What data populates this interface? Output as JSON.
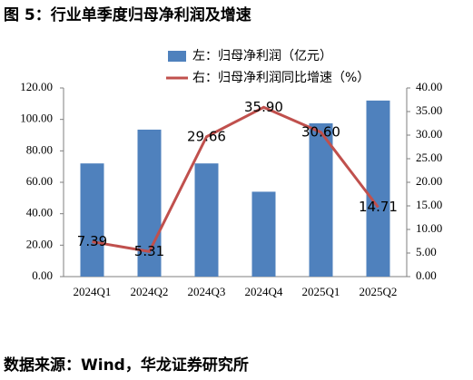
{
  "title": "图 5：行业单季度归母净利润及增速",
  "source": "数据来源：Wind，华龙证券研究所",
  "chart_data": {
    "type": "bar-line",
    "categories": [
      "2024Q1",
      "2024Q2",
      "2024Q3",
      "2024Q4",
      "2025Q1",
      "2025Q2"
    ],
    "series": [
      {
        "name": "左：归母净利润（亿元）",
        "type": "bar",
        "color": "#4f81bd",
        "values": [
          72,
          93.5,
          72,
          54,
          97.5,
          112
        ]
      },
      {
        "name": "右：归母净利润同比增速（%）",
        "type": "line",
        "axis": "y2",
        "color": "#c0504d",
        "values": [
          7.39,
          5.31,
          29.66,
          35.9,
          30.6,
          14.71
        ],
        "value_labels": [
          "7.39",
          "5.31",
          "29.66",
          "35.90",
          "30.60",
          "14.71"
        ]
      }
    ],
    "ylim": [
      0,
      120
    ],
    "yticks": [
      {
        "value": 0,
        "label": "0.00"
      },
      {
        "value": 20,
        "label": "20.00"
      },
      {
        "value": 40,
        "label": "40.00"
      },
      {
        "value": 60,
        "label": "60.00"
      },
      {
        "value": 80,
        "label": "80.00"
      },
      {
        "value": 100,
        "label": "100.00"
      },
      {
        "value": 120,
        "label": "120.00"
      }
    ],
    "y2lim": [
      0,
      40
    ],
    "y2ticks": [
      {
        "value": 0,
        "label": "0.00"
      },
      {
        "value": 5,
        "label": "5.00"
      },
      {
        "value": 10,
        "label": "10.00"
      },
      {
        "value": 15,
        "label": "15.00"
      },
      {
        "value": 20,
        "label": "20.00"
      },
      {
        "value": 25,
        "label": "25.00"
      },
      {
        "value": 30,
        "label": "30.00"
      },
      {
        "value": 35,
        "label": "35.00"
      },
      {
        "value": 40,
        "label": "40.00"
      }
    ]
  }
}
